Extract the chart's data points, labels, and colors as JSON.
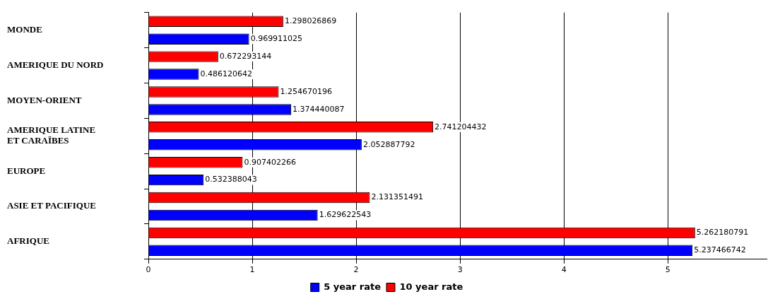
{
  "chart_data": {
    "type": "bar",
    "orientation": "horizontal",
    "categories": [
      "MONDE",
      "AMERIQUE DU NORD",
      "MOYEN-ORIENT",
      "AMERIQUE LATINE\nET CARAÏBES",
      "EUROPE",
      "ASIE ET PACIFIQUE",
      "AFRIQUE"
    ],
    "series": [
      {
        "name": "5 year rate",
        "color": "#0000ff",
        "values": [
          0.969911025,
          0.486120642,
          1.374440087,
          2.052887792,
          0.532388043,
          1.629622543,
          5.237466742
        ]
      },
      {
        "name": "10 year rate",
        "color": "#ff0000",
        "values": [
          1.298026869,
          0.672293144,
          1.254670196,
          2.741204432,
          0.907402266,
          2.131351491,
          5.262180791
        ]
      }
    ],
    "xlim": [
      0,
      5.95
    ],
    "xticks": [
      0,
      1,
      2,
      3,
      4,
      5
    ],
    "grid": "x",
    "legend": "bottom",
    "data_labels": true
  }
}
